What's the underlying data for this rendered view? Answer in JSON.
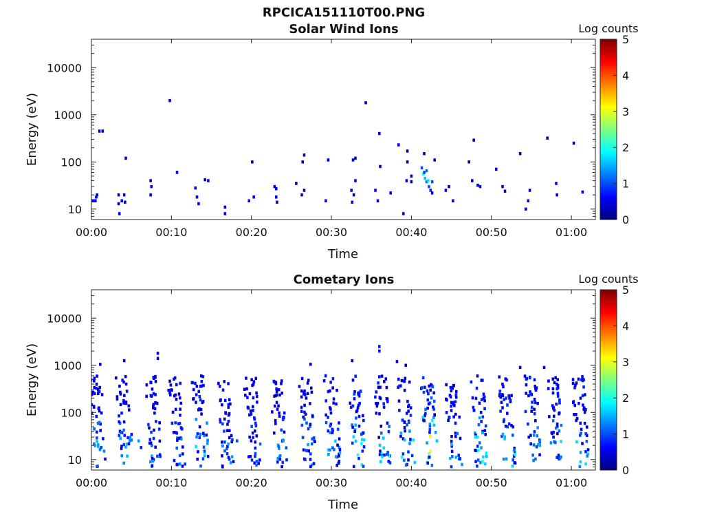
{
  "figure": {
    "title": "RPCICA151110T00.PNG"
  },
  "colormap": {
    "stops": [
      "#00007f",
      "#0000ff",
      "#007fff",
      "#00ffff",
      "#7fff7f",
      "#ffff00",
      "#ff7f00",
      "#ff0000",
      "#7f0000"
    ],
    "range": [
      0,
      5
    ]
  },
  "chart_data": [
    {
      "type": "heatmap",
      "title": "Solar Wind Ions",
      "xlabel": "Time",
      "ylabel": "Energy (eV)",
      "x_unit": "minutes",
      "x_range": [
        0,
        63
      ],
      "x_tick_values": [
        0,
        10,
        20,
        30,
        40,
        50,
        60
      ],
      "x_tick_labels": [
        "00:00",
        "00:10",
        "00:20",
        "00:30",
        "00:40",
        "00:50",
        "01:00"
      ],
      "y_scale": "log",
      "y_range": [
        6,
        40000
      ],
      "y_tick_values": [
        10,
        100,
        1000,
        10000
      ],
      "y_tick_labels": [
        "10",
        "100",
        "1000",
        "10000"
      ],
      "colorbar": {
        "label": "Log counts",
        "range": [
          0,
          5
        ],
        "tick_labels": [
          "0",
          "1",
          "2",
          "3",
          "4",
          "5"
        ]
      },
      "cells": [
        [
          0.2,
          15,
          0.6
        ],
        [
          0.5,
          15,
          0.5
        ],
        [
          0.6,
          18,
          0.5
        ],
        [
          0.7,
          20,
          0.6
        ],
        [
          1.0,
          450,
          0.3
        ],
        [
          1.4,
          450,
          0.3
        ],
        [
          3.4,
          20,
          0.5
        ],
        [
          3.4,
          13,
          0.4
        ],
        [
          3.5,
          8,
          0.5
        ],
        [
          3.8,
          15,
          0.6
        ],
        [
          4.1,
          20,
          0.5
        ],
        [
          4.2,
          14,
          0.4
        ],
        [
          4.3,
          120,
          0.4
        ],
        [
          7.4,
          40,
          0.3
        ],
        [
          7.5,
          30,
          0.5
        ],
        [
          7.4,
          20,
          0.6
        ],
        [
          9.8,
          2000,
          0.4
        ],
        [
          10.7,
          60,
          0.5
        ],
        [
          13.0,
          28,
          0.4
        ],
        [
          13.2,
          18,
          0.5
        ],
        [
          13.4,
          13,
          0.5
        ],
        [
          14.2,
          42,
          0.5
        ],
        [
          14.6,
          40,
          0.4
        ],
        [
          16.7,
          8,
          0.6
        ],
        [
          16.7,
          11,
          0.4
        ],
        [
          19.7,
          15,
          0.5
        ],
        [
          20.3,
          18,
          0.6
        ],
        [
          20.1,
          100,
          0.4
        ],
        [
          22.9,
          30,
          0.4
        ],
        [
          23.1,
          18,
          0.5
        ],
        [
          23.2,
          14,
          0.4
        ],
        [
          23.1,
          27,
          0.5
        ],
        [
          25.6,
          35,
          0.4
        ],
        [
          26.3,
          20,
          0.5
        ],
        [
          26.6,
          25,
          0.5
        ],
        [
          26.6,
          140,
          0.3
        ],
        [
          26.4,
          100,
          0.4
        ],
        [
          29.3,
          15,
          0.6
        ],
        [
          29.6,
          110,
          0.4
        ],
        [
          32.5,
          25,
          0.5
        ],
        [
          32.6,
          14,
          0.6
        ],
        [
          32.8,
          20,
          0.5
        ],
        [
          33.0,
          40,
          0.5
        ],
        [
          32.7,
          110,
          0.4
        ],
        [
          33.0,
          120,
          0.4
        ],
        [
          34.3,
          1800,
          0.5
        ],
        [
          35.5,
          25,
          0.5
        ],
        [
          35.8,
          15,
          0.5
        ],
        [
          36.0,
          400,
          0.4
        ],
        [
          36.1,
          80,
          0.4
        ],
        [
          37.4,
          22,
          0.5
        ],
        [
          38.4,
          230,
          0.4
        ],
        [
          39.0,
          8,
          0.6
        ],
        [
          39.4,
          40,
          0.4
        ],
        [
          39.5,
          170,
          0.3
        ],
        [
          39.5,
          100,
          0.5
        ],
        [
          40.0,
          50,
          0.5
        ],
        [
          40.0,
          38,
          0.4
        ],
        [
          41.3,
          75,
          1.0
        ],
        [
          41.5,
          55,
          2.0
        ],
        [
          41.7,
          45,
          1.6
        ],
        [
          41.9,
          38,
          1.2
        ],
        [
          42.1,
          40,
          1.8
        ],
        [
          42.2,
          30,
          1.0
        ],
        [
          42.4,
          25,
          0.8
        ],
        [
          42.6,
          22,
          0.5
        ],
        [
          42.6,
          38,
          1.0
        ],
        [
          41.9,
          65,
          1.2
        ],
        [
          41.6,
          60,
          1.0
        ],
        [
          41.6,
          150,
          0.3
        ],
        [
          42.9,
          110,
          0.3
        ],
        [
          44.3,
          25,
          0.5
        ],
        [
          44.7,
          30,
          0.4
        ],
        [
          45.2,
          15,
          0.6
        ],
        [
          47.2,
          100,
          0.3
        ],
        [
          47.6,
          40,
          0.4
        ],
        [
          47.8,
          290,
          0.3
        ],
        [
          48.3,
          32,
          0.5
        ],
        [
          48.6,
          30,
          0.4
        ],
        [
          50.6,
          70,
          0.3
        ],
        [
          51.4,
          30,
          0.5
        ],
        [
          51.7,
          24,
          0.5
        ],
        [
          53.6,
          150,
          0.3
        ],
        [
          54.3,
          10,
          0.6
        ],
        [
          54.6,
          15,
          0.6
        ],
        [
          54.8,
          25,
          0.5
        ],
        [
          57.0,
          320,
          0.3
        ],
        [
          58.1,
          35,
          0.5
        ],
        [
          58.2,
          20,
          0.6
        ],
        [
          60.3,
          250,
          0.3
        ],
        [
          61.4,
          23,
          0.5
        ]
      ]
    },
    {
      "type": "heatmap",
      "title": "Cometary Ions",
      "xlabel": "Time",
      "ylabel": "Energy (eV)",
      "x_unit": "minutes",
      "x_range": [
        0,
        63
      ],
      "x_tick_values": [
        0,
        10,
        20,
        30,
        40,
        50,
        60
      ],
      "x_tick_labels": [
        "00:00",
        "00:10",
        "00:20",
        "00:30",
        "00:40",
        "00:50",
        "01:00"
      ],
      "y_scale": "log",
      "y_range": [
        6,
        40000
      ],
      "y_tick_values": [
        10,
        100,
        1000,
        10000
      ],
      "y_tick_labels": [
        "10",
        "100",
        "1000",
        "10000"
      ],
      "colorbar": {
        "label": "Log counts",
        "range": [
          0,
          5
        ],
        "tick_labels": [
          "0",
          "1",
          "2",
          "3",
          "4",
          "5"
        ]
      },
      "burst_times": [
        0.4,
        3.8,
        7.5,
        10.3,
        13.3,
        16.5,
        19.8,
        23.1,
        26.7,
        29.8,
        32.9,
        36.1,
        39.0,
        41.9,
        44.9,
        48.2,
        51.6,
        54.8,
        57.6,
        60.8
      ],
      "burst_peaks": [
        1.4,
        1.3,
        1.2,
        1.1,
        1.5,
        1.2,
        1.1,
        1.3,
        1.2,
        1.4,
        1.9,
        1.6,
        1.8,
        2.7,
        1.4,
        1.7,
        1.6,
        1.6,
        1.5,
        1.5
      ],
      "extra_cells": [
        [
          1.1,
          1050,
          0.4
        ],
        [
          4.1,
          1250,
          0.4
        ],
        [
          8.3,
          1800,
          0.6
        ],
        [
          8.3,
          1400,
          0.5
        ],
        [
          27.4,
          1050,
          0.4
        ],
        [
          32.6,
          1250,
          0.4
        ],
        [
          36.0,
          2500,
          0.7
        ],
        [
          36.0,
          2000,
          0.6
        ],
        [
          38.2,
          1200,
          0.5
        ],
        [
          39.3,
          1000,
          0.4
        ],
        [
          53.6,
          900,
          0.4
        ],
        [
          56.6,
          900,
          0.4
        ],
        [
          5.9,
          25,
          1.4
        ],
        [
          6.2,
          18,
          0.8
        ],
        [
          18.2,
          25,
          1.0
        ],
        [
          43.2,
          25,
          1.6
        ]
      ]
    }
  ]
}
